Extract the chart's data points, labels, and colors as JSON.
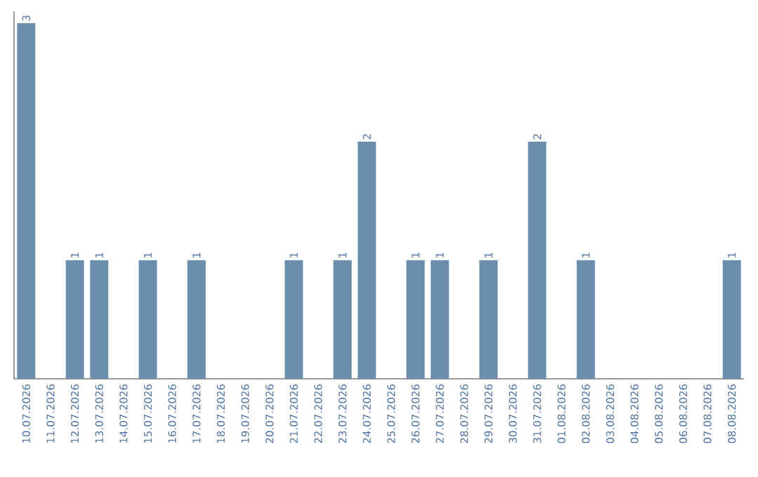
{
  "chart_data": {
    "type": "bar",
    "categories": [
      "10.07.2026",
      "11.07.2026",
      "12.07.2026",
      "13.07.2026",
      "14.07.2026",
      "15.07.2026",
      "16.07.2026",
      "17.07.2026",
      "18.07.2026",
      "19.07.2026",
      "20.07.2026",
      "21.07.2026",
      "22.07.2026",
      "23.07.2026",
      "24.07.2026",
      "25.07.2026",
      "26.07.2026",
      "27.07.2026",
      "28.07.2026",
      "29.07.2026",
      "30.07.2026",
      "31.07.2026",
      "01.08.2026",
      "02.08.2026",
      "03.08.2026",
      "04.08.2026",
      "05.08.2026",
      "06.08.2026",
      "07.08.2026",
      "08.08.2026"
    ],
    "values": [
      3,
      0,
      1,
      1,
      0,
      1,
      0,
      1,
      0,
      0,
      0,
      1,
      0,
      1,
      2,
      0,
      1,
      1,
      0,
      1,
      0,
      2,
      0,
      1,
      0,
      0,
      0,
      0,
      0,
      1
    ],
    "value_labels": [
      "3",
      null,
      "1",
      "1",
      null,
      "1",
      null,
      "1",
      null,
      null,
      null,
      "1",
      null,
      "1",
      "2",
      null,
      "1",
      "1",
      null,
      "1",
      null,
      "2",
      null,
      "1",
      null,
      null,
      null,
      null,
      null,
      "1"
    ],
    "color": "#6a8cad",
    "ylim": [
      0,
      3.1
    ],
    "tick_labels": "x"
  }
}
